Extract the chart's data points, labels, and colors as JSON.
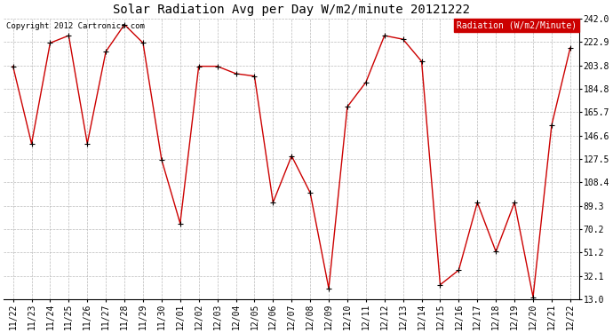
{
  "title": "Solar Radiation Avg per Day W/m2/minute 20121222",
  "copyright_text": "Copyright 2012 Cartronics.com",
  "legend_label": "Radiation (W/m2/Minute)",
  "background_color": "#ffffff",
  "plot_bg_color": "#ffffff",
  "line_color": "#cc0000",
  "marker_color": "#000000",
  "legend_bg": "#cc0000",
  "legend_fg": "#ffffff",
  "dates": [
    "11/22",
    "11/23",
    "11/24",
    "11/25",
    "11/26",
    "11/27",
    "11/28",
    "11/29",
    "11/30",
    "12/01",
    "12/02",
    "12/03",
    "12/04",
    "12/05",
    "12/06",
    "12/07",
    "12/08",
    "12/09",
    "12/10",
    "12/11",
    "12/12",
    "12/13",
    "12/14",
    "12/15",
    "12/16",
    "12/17",
    "12/18",
    "12/19",
    "12/20",
    "12/21",
    "12/22"
  ],
  "values": [
    203.0,
    140.0,
    222.0,
    228.0,
    140.0,
    215.0,
    237.0,
    222.0,
    127.0,
    75.0,
    203.0,
    203.0,
    197.0,
    195.0,
    92.0,
    130.0,
    100.0,
    22.0,
    170.0,
    190.0,
    228.0,
    225.0,
    207.0,
    25.0,
    37.0,
    92.0,
    52.0,
    92.0,
    15.0,
    155.0,
    218.0
  ],
  "ylim": [
    13.0,
    242.0
  ],
  "yticks": [
    13.0,
    32.1,
    51.2,
    70.2,
    89.3,
    108.4,
    127.5,
    146.6,
    165.7,
    184.8,
    203.8,
    222.9,
    242.0
  ],
  "ytick_labels": [
    "13.0",
    "32.1",
    "51.2",
    "70.2",
    "89.3",
    "108.4",
    "127.5",
    "146.6",
    "165.7",
    "184.8",
    "203.8",
    "222.9",
    "242.0"
  ],
  "grid_color": "#bbbbbb",
  "tick_label_fontsize": 7,
  "title_fontsize": 10,
  "copyright_fontsize": 6.5,
  "legend_fontsize": 7
}
